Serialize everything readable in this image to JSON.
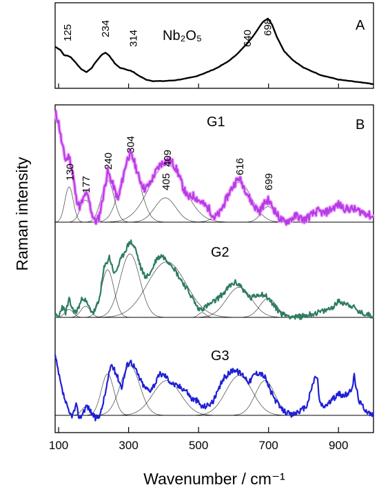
{
  "chart_data": [
    {
      "panel": "A",
      "type": "line",
      "panel_label": "A",
      "compound_label": "Nb₂O₅",
      "xlim": [
        90,
        1000
      ],
      "series": [
        {
          "name": "Nb₂O₅",
          "color": "#000000",
          "x": [
            90,
            105,
            115,
            125,
            135,
            150,
            165,
            180,
            195,
            210,
            225,
            234,
            245,
            260,
            275,
            290,
            305,
            314,
            330,
            350,
            370,
            400,
            430,
            460,
            490,
            520,
            550,
            580,
            600,
            620,
            640,
            655,
            670,
            685,
            698,
            710,
            725,
            745,
            770,
            800,
            850,
            900,
            950,
            1000
          ],
          "y": [
            0.52,
            0.48,
            0.41,
            0.4,
            0.38,
            0.3,
            0.22,
            0.18,
            0.24,
            0.34,
            0.42,
            0.44,
            0.4,
            0.3,
            0.24,
            0.22,
            0.2,
            0.18,
            0.13,
            0.08,
            0.06,
            0.06,
            0.07,
            0.09,
            0.12,
            0.17,
            0.23,
            0.31,
            0.38,
            0.47,
            0.57,
            0.66,
            0.76,
            0.86,
            0.9,
            0.82,
            0.64,
            0.46,
            0.34,
            0.24,
            0.14,
            0.08,
            0.05,
            0.02
          ]
        }
      ],
      "annotations": [
        "125",
        "234",
        "314",
        "640",
        "698"
      ]
    },
    {
      "panel": "B",
      "type": "line",
      "panel_label": "B",
      "ylabel": "Raman intensity",
      "xlabel": "Wavenumber / cm⁻¹",
      "xlim": [
        90,
        1000
      ],
      "x_ticks": [
        "100",
        "300",
        "500",
        "700",
        "900"
      ],
      "x_tick_values": [
        100,
        300,
        500,
        700,
        900
      ],
      "series": [
        {
          "name": "G1",
          "color": "#b43ce6",
          "halo_color": "#ef9cf8",
          "x": [
            90,
            100,
            110,
            120,
            130,
            140,
            150,
            160,
            170,
            177,
            185,
            195,
            205,
            215,
            225,
            240,
            255,
            270,
            285,
            295,
            304,
            315,
            330,
            345,
            360,
            375,
            390,
            409,
            425,
            440,
            455,
            470,
            485,
            500,
            515,
            530,
            545,
            560,
            575,
            590,
            605,
            616,
            630,
            645,
            660,
            675,
            690,
            699,
            715,
            730,
            745,
            760,
            780,
            800,
            820,
            840,
            860,
            880,
            900,
            920,
            940,
            960,
            980,
            1000
          ],
          "y": [
            1.0,
            0.9,
            0.7,
            0.56,
            0.6,
            0.45,
            0.22,
            0.14,
            0.2,
            0.26,
            0.22,
            0.08,
            0.0,
            0.04,
            0.2,
            0.46,
            0.34,
            0.2,
            0.42,
            0.56,
            0.62,
            0.56,
            0.4,
            0.3,
            0.34,
            0.44,
            0.52,
            0.56,
            0.54,
            0.46,
            0.32,
            0.22,
            0.24,
            0.2,
            0.16,
            0.12,
            0.04,
            0.08,
            0.18,
            0.28,
            0.36,
            0.4,
            0.32,
            0.22,
            0.14,
            0.1,
            0.18,
            0.2,
            0.12,
            0.04,
            0.0,
            0.02,
            0.06,
            0.02,
            0.06,
            0.1,
            0.08,
            0.12,
            0.16,
            0.12,
            0.12,
            0.1,
            0.08,
            0.04
          ]
        },
        {
          "name": "G2",
          "color": "#2e7d5e",
          "x": [
            90,
            100,
            110,
            120,
            130,
            140,
            150,
            160,
            170,
            180,
            190,
            200,
            215,
            230,
            245,
            260,
            275,
            290,
            305,
            320,
            335,
            350,
            365,
            380,
            395,
            410,
            425,
            440,
            455,
            470,
            485,
            500,
            515,
            530,
            545,
            560,
            575,
            590,
            605,
            620,
            635,
            650,
            665,
            680,
            695,
            710,
            725,
            740,
            760,
            780,
            800,
            820,
            840,
            860,
            880,
            900,
            920,
            940,
            960,
            980,
            1000
          ],
          "y": [
            0.02,
            0.0,
            0.14,
            0.06,
            0.22,
            0.1,
            0.06,
            0.16,
            0.26,
            0.18,
            0.1,
            0.06,
            0.2,
            0.62,
            0.76,
            0.54,
            0.7,
            0.84,
            0.96,
            0.86,
            0.62,
            0.5,
            0.58,
            0.74,
            0.78,
            0.72,
            0.66,
            0.54,
            0.44,
            0.34,
            0.22,
            0.1,
            0.12,
            0.16,
            0.2,
            0.26,
            0.32,
            0.4,
            0.44,
            0.4,
            0.3,
            0.24,
            0.28,
            0.3,
            0.26,
            0.18,
            0.1,
            0.04,
            0.02,
            0.0,
            0.02,
            0.04,
            0.06,
            0.08,
            0.12,
            0.2,
            0.18,
            0.14,
            0.06,
            0.04,
            0.02
          ]
        },
        {
          "name": "G3",
          "color": "#1f1fd6",
          "x": [
            90,
            100,
            110,
            120,
            130,
            140,
            150,
            160,
            170,
            180,
            190,
            205,
            220,
            235,
            250,
            265,
            280,
            295,
            305,
            315,
            330,
            345,
            360,
            375,
            390,
            405,
            420,
            435,
            450,
            465,
            480,
            495,
            510,
            525,
            540,
            555,
            570,
            585,
            600,
            615,
            630,
            645,
            660,
            675,
            690,
            705,
            720,
            735,
            750,
            765,
            780,
            795,
            810,
            825,
            835,
            840,
            845,
            855,
            870,
            885,
            900,
            915,
            930,
            940,
            945,
            950,
            960,
            975,
            990,
            1000
          ],
          "y": [
            0.72,
            0.5,
            0.3,
            0.16,
            0.02,
            0.0,
            0.12,
            -0.04,
            0.04,
            0.12,
            0.06,
            -0.04,
            0.02,
            0.3,
            0.62,
            0.5,
            0.34,
            0.6,
            0.66,
            0.6,
            0.46,
            0.34,
            0.3,
            0.38,
            0.5,
            0.48,
            0.4,
            0.36,
            0.34,
            0.3,
            0.2,
            0.18,
            0.1,
            0.12,
            0.16,
            0.28,
            0.44,
            0.5,
            0.56,
            0.52,
            0.48,
            0.4,
            0.5,
            0.52,
            0.46,
            0.3,
            0.18,
            0.08,
            0.04,
            0.0,
            0.04,
            0.06,
            0.12,
            0.36,
            0.48,
            0.44,
            0.18,
            0.1,
            0.14,
            0.2,
            0.26,
            0.24,
            0.26,
            0.36,
            0.48,
            0.34,
            0.16,
            0.08,
            0.02,
            0.0
          ]
        }
      ],
      "fit_peaks": {
        "G1": [
          {
            "center": 130,
            "height": 0.32,
            "width": 12
          },
          {
            "center": 177,
            "height": 0.2,
            "width": 15
          },
          {
            "center": 240,
            "height": 0.38,
            "width": 18
          },
          {
            "center": 304,
            "height": 0.58,
            "width": 28
          },
          {
            "center": 409,
            "height": 0.52,
            "width": 50
          },
          {
            "center": 405,
            "height": 0.22,
            "width": 30
          },
          {
            "center": 616,
            "height": 0.36,
            "width": 36
          },
          {
            "center": 699,
            "height": 0.14,
            "width": 20
          }
        ],
        "G2": [
          {
            "center": 130,
            "height": 0.1,
            "width": 12
          },
          {
            "center": 177,
            "height": 0.14,
            "width": 14
          },
          {
            "center": 240,
            "height": 0.6,
            "width": 18
          },
          {
            "center": 304,
            "height": 0.8,
            "width": 28
          },
          {
            "center": 409,
            "height": 0.7,
            "width": 55
          },
          {
            "center": 510,
            "height": 0.06,
            "width": 10
          },
          {
            "center": 616,
            "height": 0.38,
            "width": 36
          },
          {
            "center": 699,
            "height": 0.24,
            "width": 24
          }
        ],
        "G3": [
          {
            "center": 177,
            "height": 0.1,
            "width": 12
          },
          {
            "center": 240,
            "height": 0.5,
            "width": 18
          },
          {
            "center": 304,
            "height": 0.6,
            "width": 28
          },
          {
            "center": 409,
            "height": 0.42,
            "width": 40
          },
          {
            "center": 616,
            "height": 0.48,
            "width": 38
          },
          {
            "center": 690,
            "height": 0.42,
            "width": 28
          }
        ]
      },
      "annotations": [
        "130",
        "177",
        "240",
        "304",
        "409",
        "405",
        "616",
        "699"
      ]
    }
  ]
}
